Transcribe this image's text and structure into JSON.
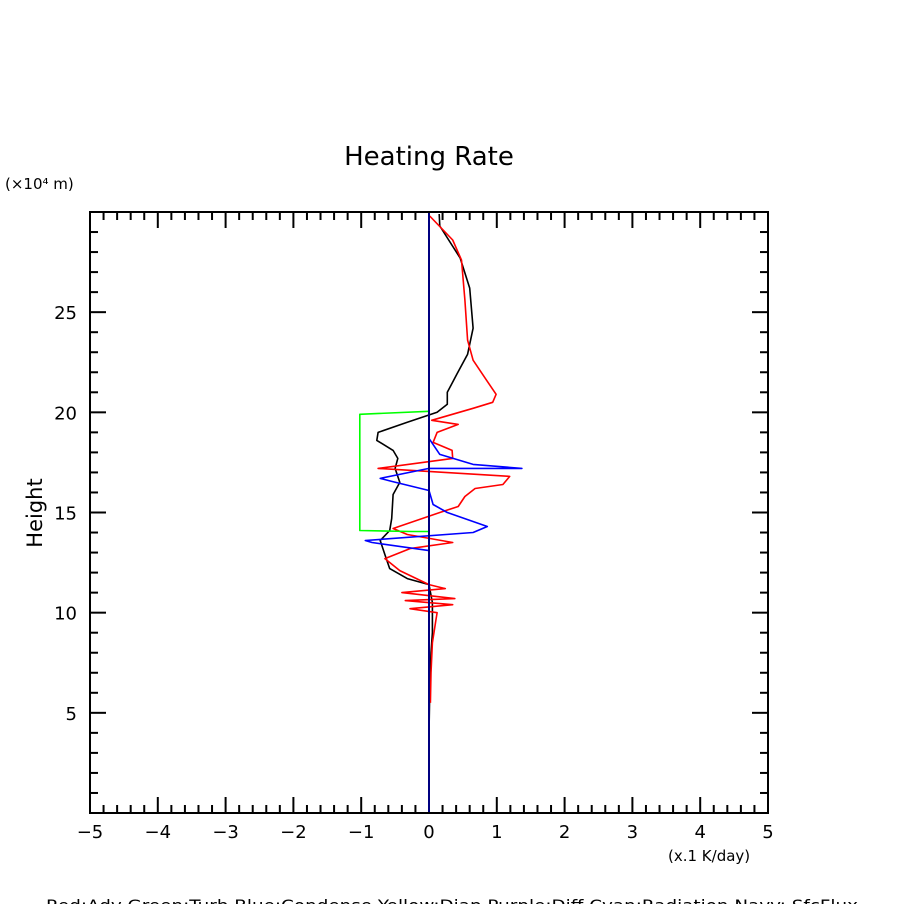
{
  "chart_data": {
    "type": "line",
    "title": "Heating Rate",
    "xlabel": "(x.1 K/day)",
    "ylabel": "Height",
    "yunit": "(×10⁴ m)",
    "xlim": [
      -5,
      5
    ],
    "ylim": [
      0,
      30
    ],
    "xticks": [
      -5,
      -4,
      -3,
      -2,
      -1,
      0,
      1,
      2,
      3,
      4,
      5
    ],
    "yticks": [
      5,
      10,
      15,
      20,
      25
    ],
    "grid": false,
    "legend_text": "Red:Adv   Green:Turb   Blue:Condense   Yellow:Diap   Purple:Diff   Cyan:Radiation   Navy: SfcFlux",
    "legend_placement": "bottom",
    "series": [
      {
        "color": "#000000",
        "points": [
          [
            0.15,
            29.9
          ],
          [
            0.16,
            29.3
          ],
          [
            0.46,
            27.7
          ],
          [
            0.6,
            26.2
          ],
          [
            0.65,
            24.2
          ],
          [
            0.57,
            22.9
          ],
          [
            0.41,
            21.9
          ],
          [
            0.27,
            21.0
          ],
          [
            0.27,
            20.4
          ],
          [
            0.12,
            20.0
          ],
          [
            -0.32,
            19.5
          ],
          [
            -0.75,
            19.0
          ],
          [
            -0.77,
            18.6
          ],
          [
            -0.53,
            18.1
          ],
          [
            -0.46,
            17.7
          ],
          [
            -0.5,
            17.2
          ],
          [
            -0.43,
            16.5
          ],
          [
            -0.53,
            15.9
          ],
          [
            -0.55,
            14.7
          ],
          [
            -0.58,
            14.1
          ],
          [
            -0.72,
            13.6
          ],
          [
            -0.65,
            12.9
          ],
          [
            -0.58,
            12.2
          ],
          [
            -0.32,
            11.7
          ],
          [
            0.0,
            11.4
          ],
          [
            0.05,
            10.5
          ],
          [
            0.05,
            9.0
          ],
          [
            0.03,
            8.0
          ],
          [
            0.01,
            6.0
          ],
          [
            0.0,
            4.0
          ]
        ]
      },
      {
        "name": "Adv",
        "color": "#ff0000",
        "points": [
          [
            0.01,
            29.8
          ],
          [
            0.35,
            28.6
          ],
          [
            0.48,
            27.6
          ],
          [
            0.53,
            25.6
          ],
          [
            0.57,
            23.6
          ],
          [
            0.65,
            22.6
          ],
          [
            0.85,
            21.6
          ],
          [
            0.99,
            20.9
          ],
          [
            0.94,
            20.5
          ],
          [
            0.65,
            20.2
          ],
          [
            0.04,
            19.6
          ],
          [
            0.43,
            19.4
          ],
          [
            0.12,
            19.0
          ],
          [
            0.06,
            18.5
          ],
          [
            0.34,
            18.1
          ],
          [
            0.35,
            17.7
          ],
          [
            -0.75,
            17.2
          ],
          [
            1.19,
            16.8
          ],
          [
            1.09,
            16.4
          ],
          [
            0.68,
            16.2
          ],
          [
            0.53,
            15.8
          ],
          [
            0.43,
            15.3
          ],
          [
            0.16,
            15.0
          ],
          [
            -0.53,
            14.2
          ],
          [
            -0.32,
            13.9
          ],
          [
            0.35,
            13.5
          ],
          [
            -0.28,
            13.2
          ],
          [
            -0.65,
            12.7
          ],
          [
            -0.43,
            12.1
          ],
          [
            0.0,
            11.4
          ],
          [
            0.24,
            11.2
          ],
          [
            -0.4,
            11.0
          ],
          [
            0.38,
            10.7
          ],
          [
            -0.35,
            10.6
          ],
          [
            0.35,
            10.4
          ],
          [
            -0.28,
            10.2
          ],
          [
            0.12,
            10.0
          ],
          [
            0.1,
            9.6
          ],
          [
            0.05,
            8.5
          ],
          [
            0.03,
            7.0
          ],
          [
            0.02,
            5.5
          ]
        ]
      },
      {
        "name": "Condense",
        "color": "#0000ff",
        "points": [
          [
            0.0,
            18.7
          ],
          [
            0.16,
            17.9
          ],
          [
            0.65,
            17.4
          ],
          [
            1.37,
            17.2
          ],
          [
            0.0,
            17.2
          ],
          [
            -0.72,
            16.7
          ],
          [
            -0.55,
            16.55
          ],
          [
            0.0,
            16.1
          ],
          [
            0.06,
            15.4
          ],
          [
            0.27,
            15.0
          ],
          [
            0.86,
            14.3
          ],
          [
            0.65,
            14.0
          ],
          [
            -0.94,
            13.6
          ],
          [
            -0.84,
            13.5
          ],
          [
            0.0,
            13.1
          ],
          [
            0.0,
            12.8
          ]
        ]
      },
      {
        "name": "Turb",
        "color": "#00ff00",
        "points": [
          [
            0.0,
            20.05
          ],
          [
            -1.02,
            19.9
          ],
          [
            -1.02,
            14.1
          ],
          [
            -0.25,
            14.05
          ],
          [
            0.0,
            14.05
          ]
        ]
      },
      {
        "name": "SfcFlux",
        "color": "#000080",
        "points": [
          [
            0.0,
            0.0
          ],
          [
            0.0,
            30.0
          ]
        ]
      }
    ]
  }
}
